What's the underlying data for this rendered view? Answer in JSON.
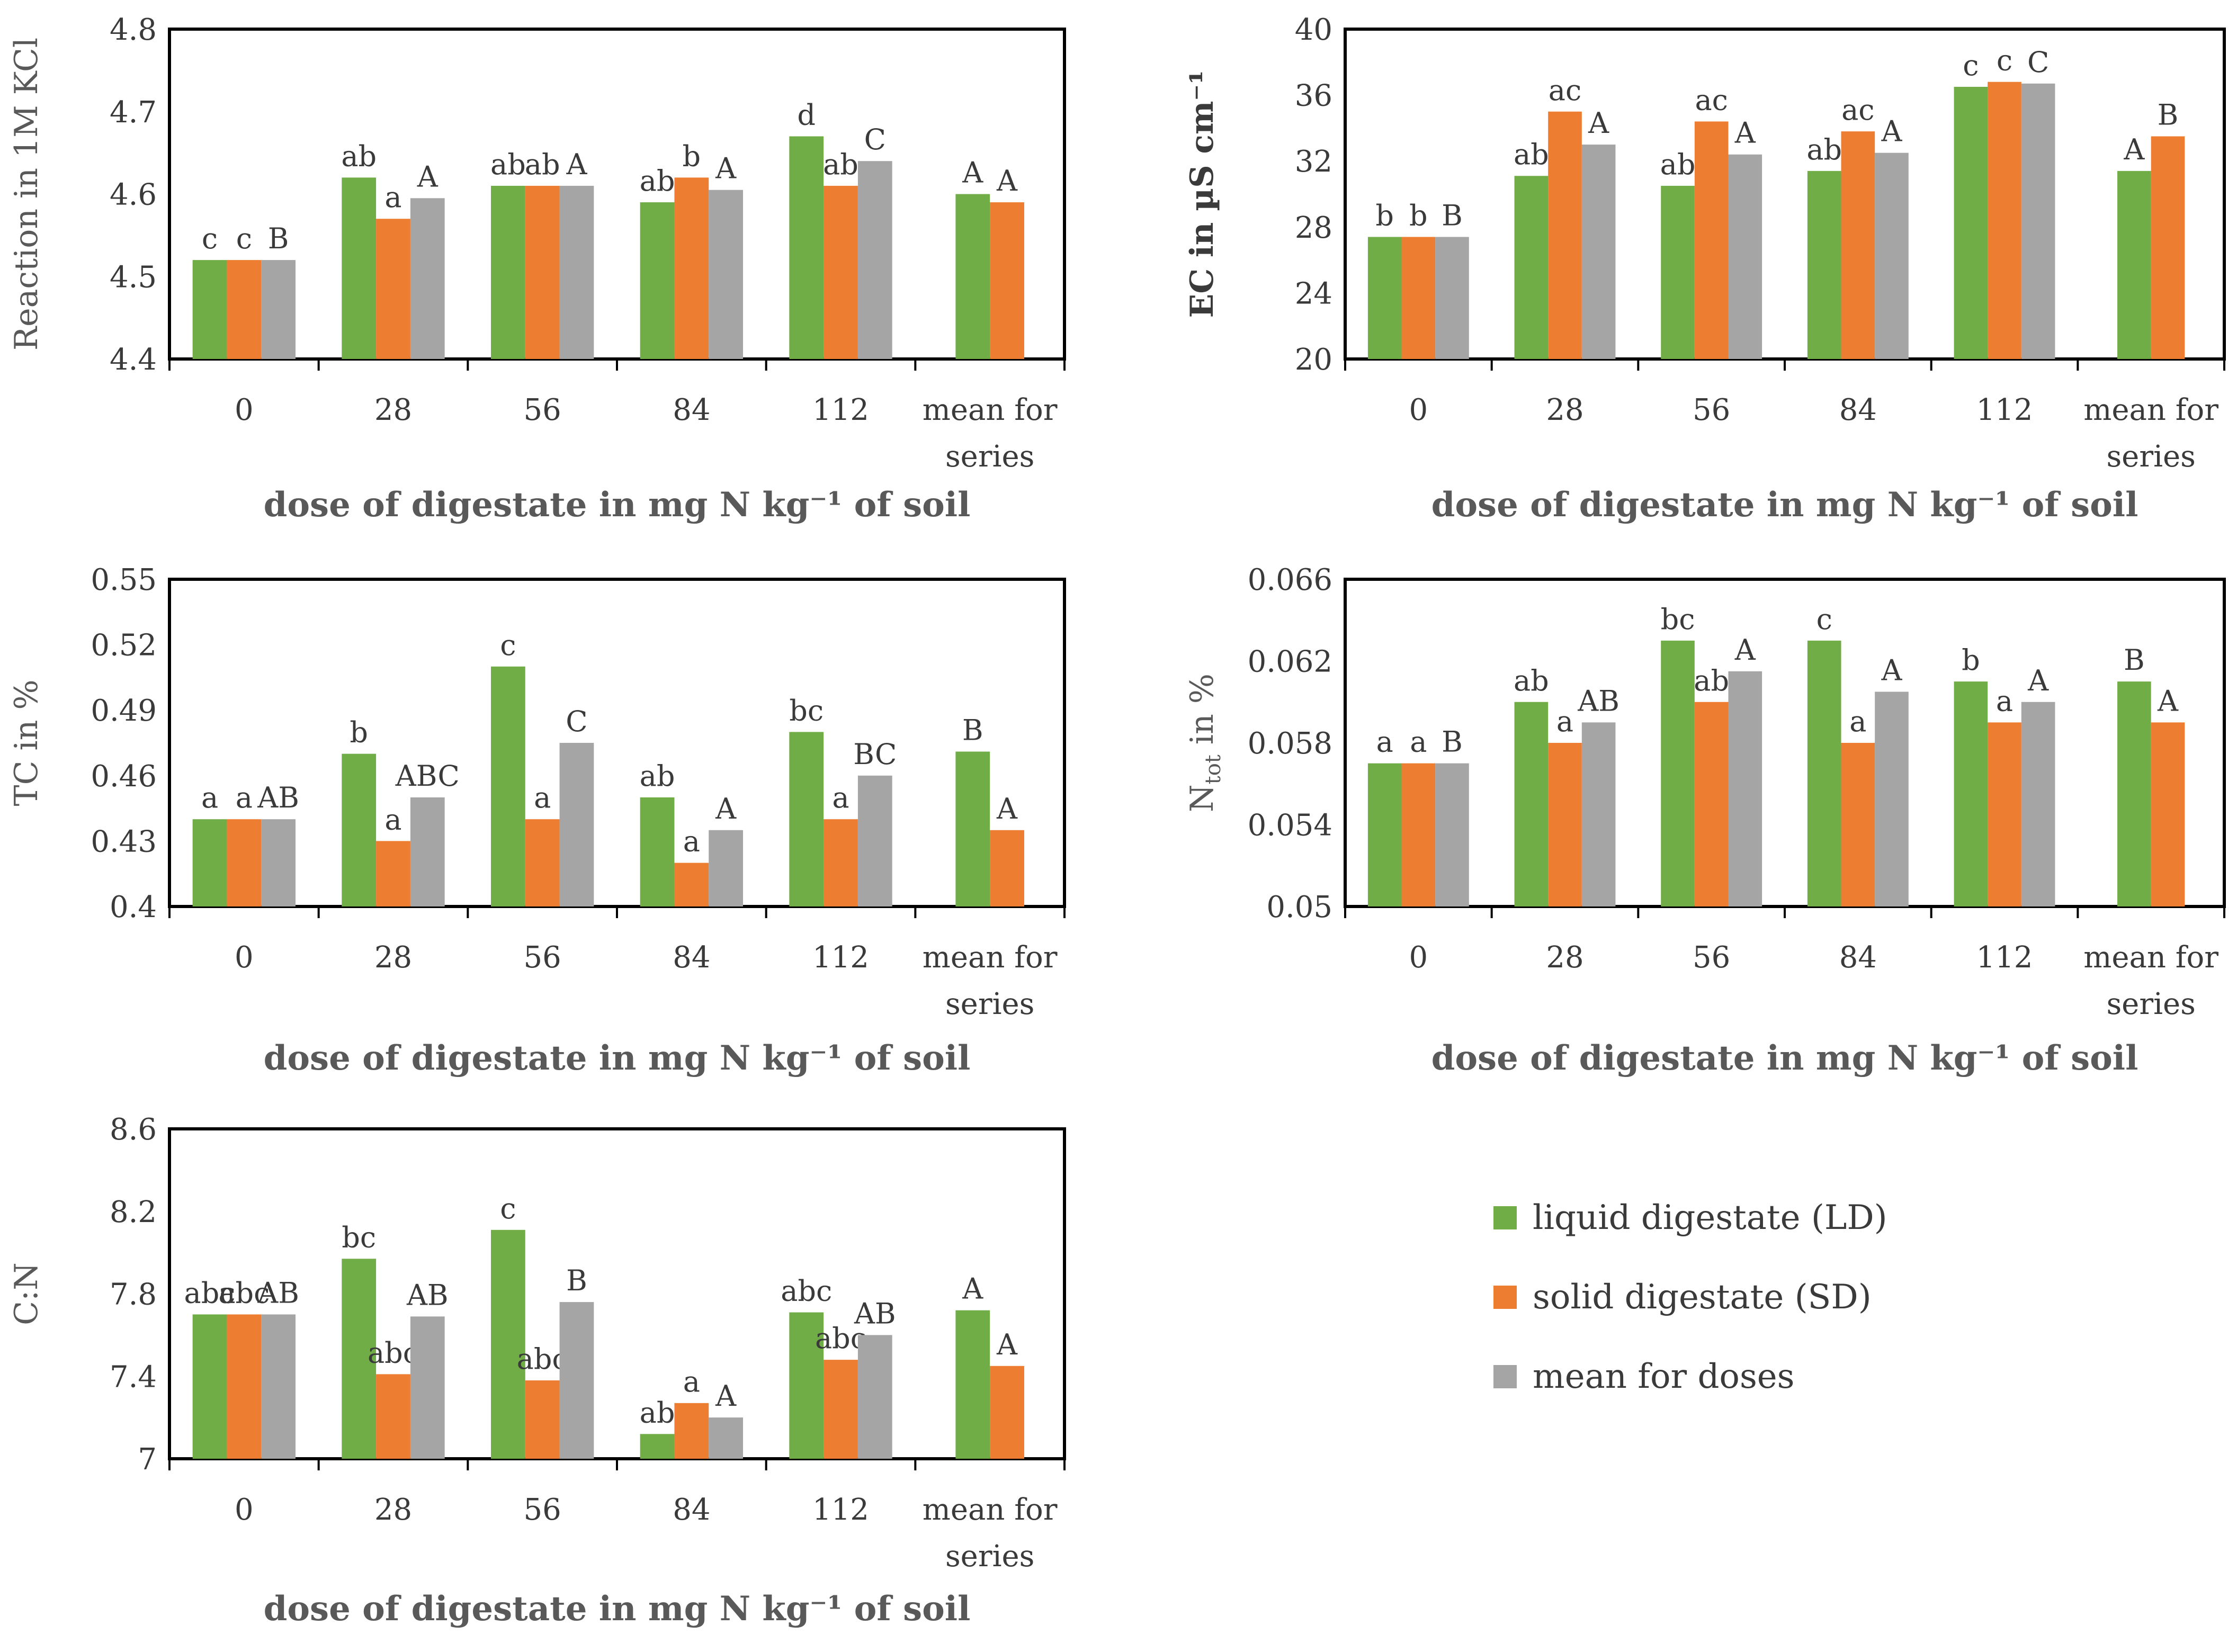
{
  "x_axis_title": "dose of digestate in mg N kg⁻¹ of soil",
  "colors": {
    "ld": "#70AD47",
    "sd": "#ED7D31",
    "mean": "#A5A5A5"
  },
  "legend": [
    {
      "label": "liquid digestate (LD)",
      "color": "#70AD47"
    },
    {
      "label": "solid digestate (SD)",
      "color": "#ED7D31"
    },
    {
      "label": "mean for doses",
      "color": "#A5A5A5"
    }
  ],
  "chart_data": [
    {
      "type": "bar",
      "ylabel": "Reaction in 1M KCl",
      "xlabel": "dose of digestate in mg N kg⁻¹ of soil",
      "categories": [
        "0",
        "28",
        "56",
        "84",
        "112",
        "mean for series"
      ],
      "ylim": [
        4.4,
        4.8
      ],
      "yticks": [
        "4.4",
        "4.5",
        "4.6",
        "4.7",
        "4.8"
      ],
      "series": [
        {
          "name": "liquid digestate (LD)",
          "values": [
            4.52,
            4.62,
            4.61,
            4.59,
            4.67,
            4.6
          ],
          "letters": [
            "c",
            "ab",
            "ab",
            "ab",
            "d",
            "A"
          ]
        },
        {
          "name": "solid digestate (SD)",
          "values": [
            4.52,
            4.57,
            4.61,
            4.62,
            4.61,
            4.59
          ],
          "letters": [
            "c",
            "a",
            "ab",
            "b",
            "ab",
            "A"
          ]
        },
        {
          "name": "mean for doses",
          "values": [
            4.52,
            4.595,
            4.61,
            4.605,
            4.64,
            null
          ],
          "letters": [
            "B",
            "A",
            "A",
            "A",
            "C",
            ""
          ]
        }
      ]
    },
    {
      "type": "bar",
      "ylabel": "EC in µS cm⁻¹",
      "xlabel": "dose of digestate in mg N kg⁻¹ of soil",
      "categories": [
        "0",
        "28",
        "56",
        "84",
        "112",
        "mean for series"
      ],
      "ylim": [
        20,
        40
      ],
      "yticks": [
        "20",
        "24",
        "28",
        "32",
        "36",
        "40"
      ],
      "series": [
        {
          "name": "liquid digestate (LD)",
          "values": [
            27.4,
            31.1,
            30.5,
            31.4,
            36.5,
            31.4
          ],
          "letters": [
            "b",
            "ab",
            "ab",
            "ab",
            "c",
            "A"
          ]
        },
        {
          "name": "solid digestate (SD)",
          "values": [
            27.4,
            35.0,
            34.4,
            33.8,
            36.8,
            33.5
          ],
          "letters": [
            "b",
            "ac",
            "ac",
            "ac",
            "c",
            "B"
          ]
        },
        {
          "name": "mean for doses",
          "values": [
            27.4,
            33.0,
            32.4,
            32.5,
            36.7,
            null
          ],
          "letters": [
            "B",
            "A",
            "A",
            "A",
            "C",
            ""
          ]
        }
      ]
    },
    {
      "type": "bar",
      "ylabel": "TC in %",
      "xlabel": "dose of digestate in mg N kg⁻¹ of soil",
      "categories": [
        "0",
        "28",
        "56",
        "84",
        "112",
        "mean for series"
      ],
      "ylim": [
        0.4,
        0.55
      ],
      "yticks": [
        "0.4",
        "0.43",
        "0.46",
        "0.49",
        "0.52",
        "0.55"
      ],
      "series": [
        {
          "name": "liquid digestate (LD)",
          "values": [
            0.44,
            0.47,
            0.51,
            0.45,
            0.48,
            0.471
          ],
          "letters": [
            "a",
            "b",
            "c",
            "ab",
            "bc",
            "B"
          ]
        },
        {
          "name": "solid digestate (SD)",
          "values": [
            0.44,
            0.43,
            0.44,
            0.42,
            0.44,
            0.435
          ],
          "letters": [
            "a",
            "a",
            "a",
            "a",
            "a",
            "A"
          ]
        },
        {
          "name": "mean for doses",
          "values": [
            0.44,
            0.45,
            0.475,
            0.435,
            0.46,
            null
          ],
          "letters": [
            "AB",
            "ABC",
            "C",
            "A",
            "BC",
            ""
          ]
        }
      ]
    },
    {
      "type": "bar",
      "ylabel": "N_tot in %",
      "xlabel": "dose of digestate in mg N kg⁻¹ of soil",
      "categories": [
        "0",
        "28",
        "56",
        "84",
        "112",
        "mean for series"
      ],
      "ylim": [
        0.05,
        0.066
      ],
      "yticks": [
        "0.05",
        "0.054",
        "0.058",
        "0.062",
        "0.066"
      ],
      "series": [
        {
          "name": "liquid digestate (LD)",
          "values": [
            0.057,
            0.06,
            0.063,
            0.063,
            0.061,
            0.061
          ],
          "letters": [
            "a",
            "ab",
            "bc",
            "c",
            "b",
            "B"
          ]
        },
        {
          "name": "solid digestate (SD)",
          "values": [
            0.057,
            0.058,
            0.06,
            0.058,
            0.059,
            0.059
          ],
          "letters": [
            "a",
            "a",
            "ab",
            "a",
            "a",
            "A"
          ]
        },
        {
          "name": "mean for doses",
          "values": [
            0.057,
            0.059,
            0.0615,
            0.0605,
            0.06,
            null
          ],
          "letters": [
            "B",
            "AB",
            "A",
            "A",
            "A",
            ""
          ]
        }
      ]
    },
    {
      "type": "bar",
      "ylabel": "C:N",
      "xlabel": "dose of digestate in mg N kg⁻¹ of soil",
      "categories": [
        "0",
        "28",
        "56",
        "84",
        "112",
        "mean for series"
      ],
      "ylim": [
        7,
        8.6
      ],
      "yticks": [
        "7",
        "7.4",
        "7.8",
        "8.2",
        "8.6"
      ],
      "series": [
        {
          "name": "liquid digestate (LD)",
          "values": [
            7.7,
            7.97,
            8.11,
            7.12,
            7.71,
            7.72
          ],
          "letters": [
            "abc",
            "bc",
            "c",
            "ab",
            "abc",
            "A"
          ]
        },
        {
          "name": "solid digestate (SD)",
          "values": [
            7.7,
            7.41,
            7.38,
            7.27,
            7.48,
            7.45
          ],
          "letters": [
            "abc",
            "abc",
            "abc",
            "a",
            "abc",
            "A"
          ]
        },
        {
          "name": "mean for doses",
          "values": [
            7.7,
            7.69,
            7.76,
            7.2,
            7.6,
            null
          ],
          "letters": [
            "AB",
            "AB",
            "B",
            "A",
            "AB",
            ""
          ]
        }
      ]
    }
  ]
}
